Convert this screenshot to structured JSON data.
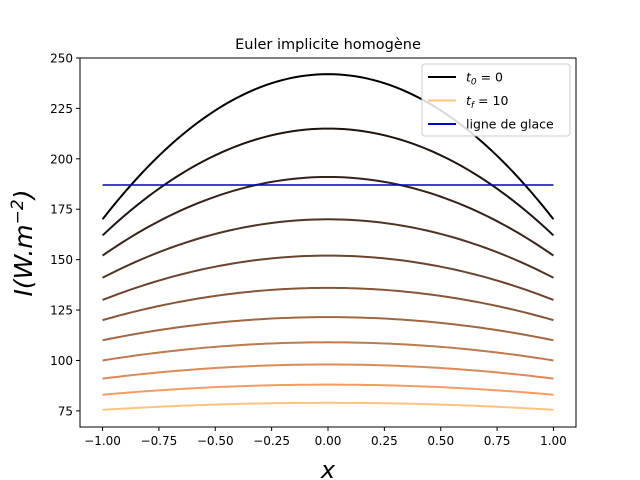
{
  "chart_data": {
    "type": "line",
    "title": "Euler implicite homogène",
    "xlabel": "x",
    "ylabel": "I(W.m^{-2})",
    "xlim": [
      -1.1,
      1.1
    ],
    "ylim": [
      67,
      250
    ],
    "x_ticks": [
      "−1.00",
      "−0.75",
      "−0.50",
      "−0.25",
      "0.00",
      "0.25",
      "0.50",
      "0.75",
      "1.00"
    ],
    "x_tick_values": [
      -1.0,
      -0.75,
      -0.5,
      -0.25,
      0.0,
      0.25,
      0.5,
      0.75,
      1.0
    ],
    "y_ticks": [
      "75",
      "100",
      "125",
      "150",
      "175",
      "200",
      "225",
      "250"
    ],
    "y_tick_values": [
      75,
      100,
      125,
      150,
      175,
      200,
      225,
      250
    ],
    "grid": false,
    "legend_position": "top-right",
    "legend": [
      {
        "label_main": "t",
        "label_sub": "0",
        "label_rest": " = 0",
        "color": "#000000"
      },
      {
        "label_main": "t",
        "label_sub": "f",
        "label_rest": " = 10",
        "color": "#ffc37e"
      },
      {
        "label_main": "ligne de glace",
        "label_sub": "",
        "label_rest": "",
        "color": "#0000cc"
      }
    ],
    "curves_form": "parabola: y = center - (center - edge) * x^2",
    "series": [
      {
        "center": 242,
        "edge": 170,
        "color": "#000000"
      },
      {
        "center": 215,
        "edge": 162,
        "color": "#1e1410"
      },
      {
        "center": 191,
        "edge": 152,
        "color": "#36231b"
      },
      {
        "center": 170,
        "edge": 141,
        "color": "#4f3424"
      },
      {
        "center": 152,
        "edge": 130,
        "color": "#6a442e"
      },
      {
        "center": 136,
        "edge": 120,
        "color": "#855638"
      },
      {
        "center": 121.5,
        "edge": 110,
        "color": "#a06842"
      },
      {
        "center": 109,
        "edge": 100,
        "color": "#bd7a4c"
      },
      {
        "center": 98,
        "edge": 91,
        "color": "#d98b57"
      },
      {
        "center": 88,
        "edge": 83,
        "color": "#f39c62"
      },
      {
        "center": 79,
        "edge": 75.5,
        "color": "#ffc37e"
      }
    ],
    "ice_line": {
      "y": 187,
      "x_range": [
        -1.0,
        1.0
      ],
      "color": "#0000cc"
    }
  }
}
